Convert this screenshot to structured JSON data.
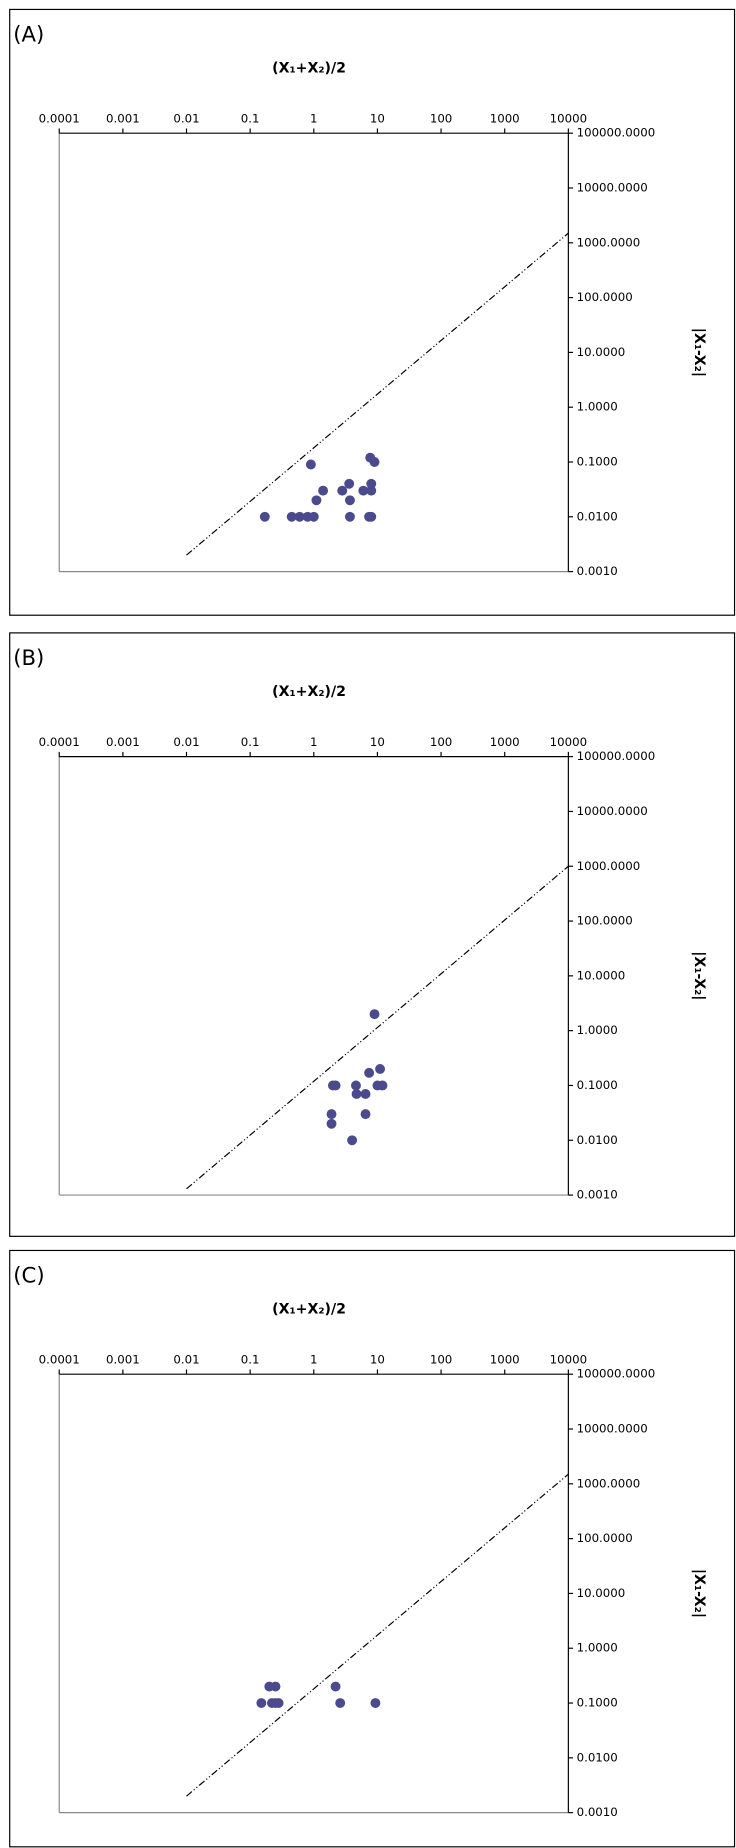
{
  "chart_data": [
    {
      "type": "scatter",
      "panel_label": "(A)",
      "x_label": "(X₁+X₂)/2",
      "y_label": "|X₁-X₂|",
      "log_x": true,
      "log_y": true,
      "xlim": [
        0.0001,
        10000
      ],
      "ylim": [
        0.001,
        100000
      ],
      "xticks": [
        0.0001,
        0.001,
        0.01,
        0.1,
        1,
        10,
        100,
        1000,
        10000
      ],
      "yticks": [
        {
          "value": 100000,
          "label": "100000.0000"
        },
        {
          "value": 10000,
          "label": "10000.0000"
        },
        {
          "value": 1000,
          "label": "1000.0000"
        },
        {
          "value": 100,
          "label": "100.0000"
        },
        {
          "value": 10,
          "label": "10.0000"
        },
        {
          "value": 1,
          "label": "1.0000"
        },
        {
          "value": 0.1,
          "label": "0.1000"
        },
        {
          "value": 0.01,
          "label": "0.0100"
        },
        {
          "value": 0.001,
          "label": "0.0010"
        }
      ],
      "series": [
        {
          "color": "#4a4a8c",
          "x": [
            0.17,
            0.45,
            0.6,
            0.8,
            1,
            3.7,
            7.4,
            8,
            1.1,
            1.4,
            2.8,
            3.6,
            6,
            8,
            8,
            0.9,
            9,
            7.7,
            3.7
          ],
          "values": [
            0.01,
            0.01,
            0.01,
            0.01,
            0.01,
            0.01,
            0.01,
            0.01,
            0.02,
            0.03,
            0.03,
            0.04,
            0.03,
            0.03,
            0.04,
            0.09,
            0.1,
            0.12,
            0.02
          ]
        }
      ],
      "reference_line": {
        "color": "#000000",
        "x": [
          0.01,
          10000
        ],
        "y": [
          0.002,
          1500
        ]
      }
    },
    {
      "type": "scatter",
      "panel_label": "(B)",
      "x_label": "(X₁+X₂)/2",
      "y_label": "|X₁-X₂|",
      "log_x": true,
      "log_y": true,
      "xlim": [
        0.0001,
        10000
      ],
      "ylim": [
        0.001,
        100000
      ],
      "xticks": [
        0.0001,
        0.001,
        0.01,
        0.1,
        1,
        10,
        100,
        1000,
        10000
      ],
      "yticks": [
        {
          "value": 100000,
          "label": "100000.0000"
        },
        {
          "value": 10000,
          "label": "10000.0000"
        },
        {
          "value": 1000,
          "label": "1000.0000"
        },
        {
          "value": 100,
          "label": "100.0000"
        },
        {
          "value": 10,
          "label": "10.0000"
        },
        {
          "value": 1,
          "label": "1.0000"
        },
        {
          "value": 0.1,
          "label": "0.1000"
        },
        {
          "value": 0.01,
          "label": "0.0100"
        },
        {
          "value": 0.001,
          "label": "0.0010"
        }
      ],
      "series": [
        {
          "color": "#4a4a8c",
          "x": [
            9,
            2,
            2.2,
            4.6,
            4.7,
            6.5,
            7.4,
            10,
            11,
            12,
            1.9,
            1.9,
            6.5,
            4
          ],
          "values": [
            2,
            0.1,
            0.1,
            0.1,
            0.07,
            0.07,
            0.17,
            0.1,
            0.2,
            0.1,
            0.03,
            0.02,
            0.03,
            0.01
          ]
        }
      ],
      "reference_line": {
        "color": "#000000",
        "x": [
          0.01,
          10000
        ],
        "y": [
          0.0013,
          1000
        ]
      }
    },
    {
      "type": "scatter",
      "panel_label": "(C)",
      "x_label": "(X₁+X₂)/2",
      "y_label": "|X₁-X₂|",
      "log_x": true,
      "log_y": true,
      "xlim": [
        0.0001,
        10000
      ],
      "ylim": [
        0.001,
        100000
      ],
      "xticks": [
        0.0001,
        0.001,
        0.01,
        0.1,
        1,
        10,
        100,
        1000,
        10000
      ],
      "yticks": [
        {
          "value": 100000,
          "label": "100000.0000"
        },
        {
          "value": 10000,
          "label": "10000.0000"
        },
        {
          "value": 1000,
          "label": "1000.0000"
        },
        {
          "value": 100,
          "label": "100.0000"
        },
        {
          "value": 10,
          "label": "10.0000"
        },
        {
          "value": 1,
          "label": "1.0000"
        },
        {
          "value": 0.1,
          "label": "0.1000"
        },
        {
          "value": 0.01,
          "label": "0.0100"
        },
        {
          "value": 0.001,
          "label": "0.0010"
        }
      ],
      "series": [
        {
          "color": "#4a4a8c",
          "x": [
            0.2,
            0.25,
            0.15,
            0.22,
            0.25,
            0.28,
            2.2,
            2.6,
            9.3
          ],
          "values": [
            0.2,
            0.2,
            0.1,
            0.1,
            0.1,
            0.1,
            0.2,
            0.1,
            0.1
          ]
        }
      ],
      "reference_line": {
        "color": "#000000",
        "x": [
          0.01,
          10000
        ],
        "y": [
          0.002,
          1500
        ]
      }
    }
  ]
}
